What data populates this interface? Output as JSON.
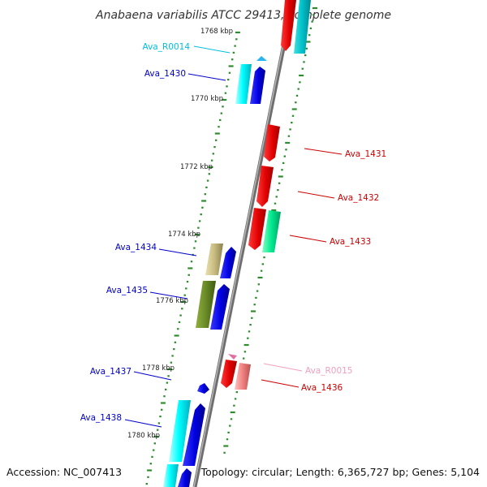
{
  "title": "Anabaena variabilis ATCC 29413, complete genome",
  "footer": {
    "accession": "Accession: NC_007413",
    "stats": "Topology: circular; Length: 6,365,727 bp; Genes: 5,104"
  },
  "colors": {
    "backbone": "#8a8a8a",
    "ticks": "#2e8b2e",
    "blue_label": "#0000cc",
    "red_label": "#cc0000",
    "cyan_label": "#00aacc",
    "pink_label": "#e0709a"
  },
  "kbp_labels": [
    "1768 kbp",
    "1770 kbp",
    "1772 kbp",
    "1774 kbp",
    "1776 kbp",
    "1778 kbp",
    "1780 kbp"
  ],
  "genes": [
    {
      "name": "Ava_R0014",
      "side": "left",
      "color": "#00c8e0"
    },
    {
      "name": "Ava_1430",
      "side": "left",
      "color": "#0000cc"
    },
    {
      "name": "Ava_1431",
      "side": "right",
      "color": "#cc0000"
    },
    {
      "name": "Ava_1432",
      "side": "right",
      "color": "#cc0000"
    },
    {
      "name": "Ava_1433",
      "side": "right",
      "color": "#cc0000"
    },
    {
      "name": "Ava_1434",
      "side": "left",
      "color": "#0000cc"
    },
    {
      "name": "Ava_1435",
      "side": "left",
      "color": "#0000cc"
    },
    {
      "name": "Ava_R0015",
      "side": "right",
      "color": "#f0a0c0"
    },
    {
      "name": "Ava_1436",
      "side": "right",
      "color": "#cc0000"
    },
    {
      "name": "Ava_1437",
      "side": "left",
      "color": "#0000cc"
    },
    {
      "name": "Ava_1438",
      "side": "left",
      "color": "#0000cc"
    }
  ]
}
